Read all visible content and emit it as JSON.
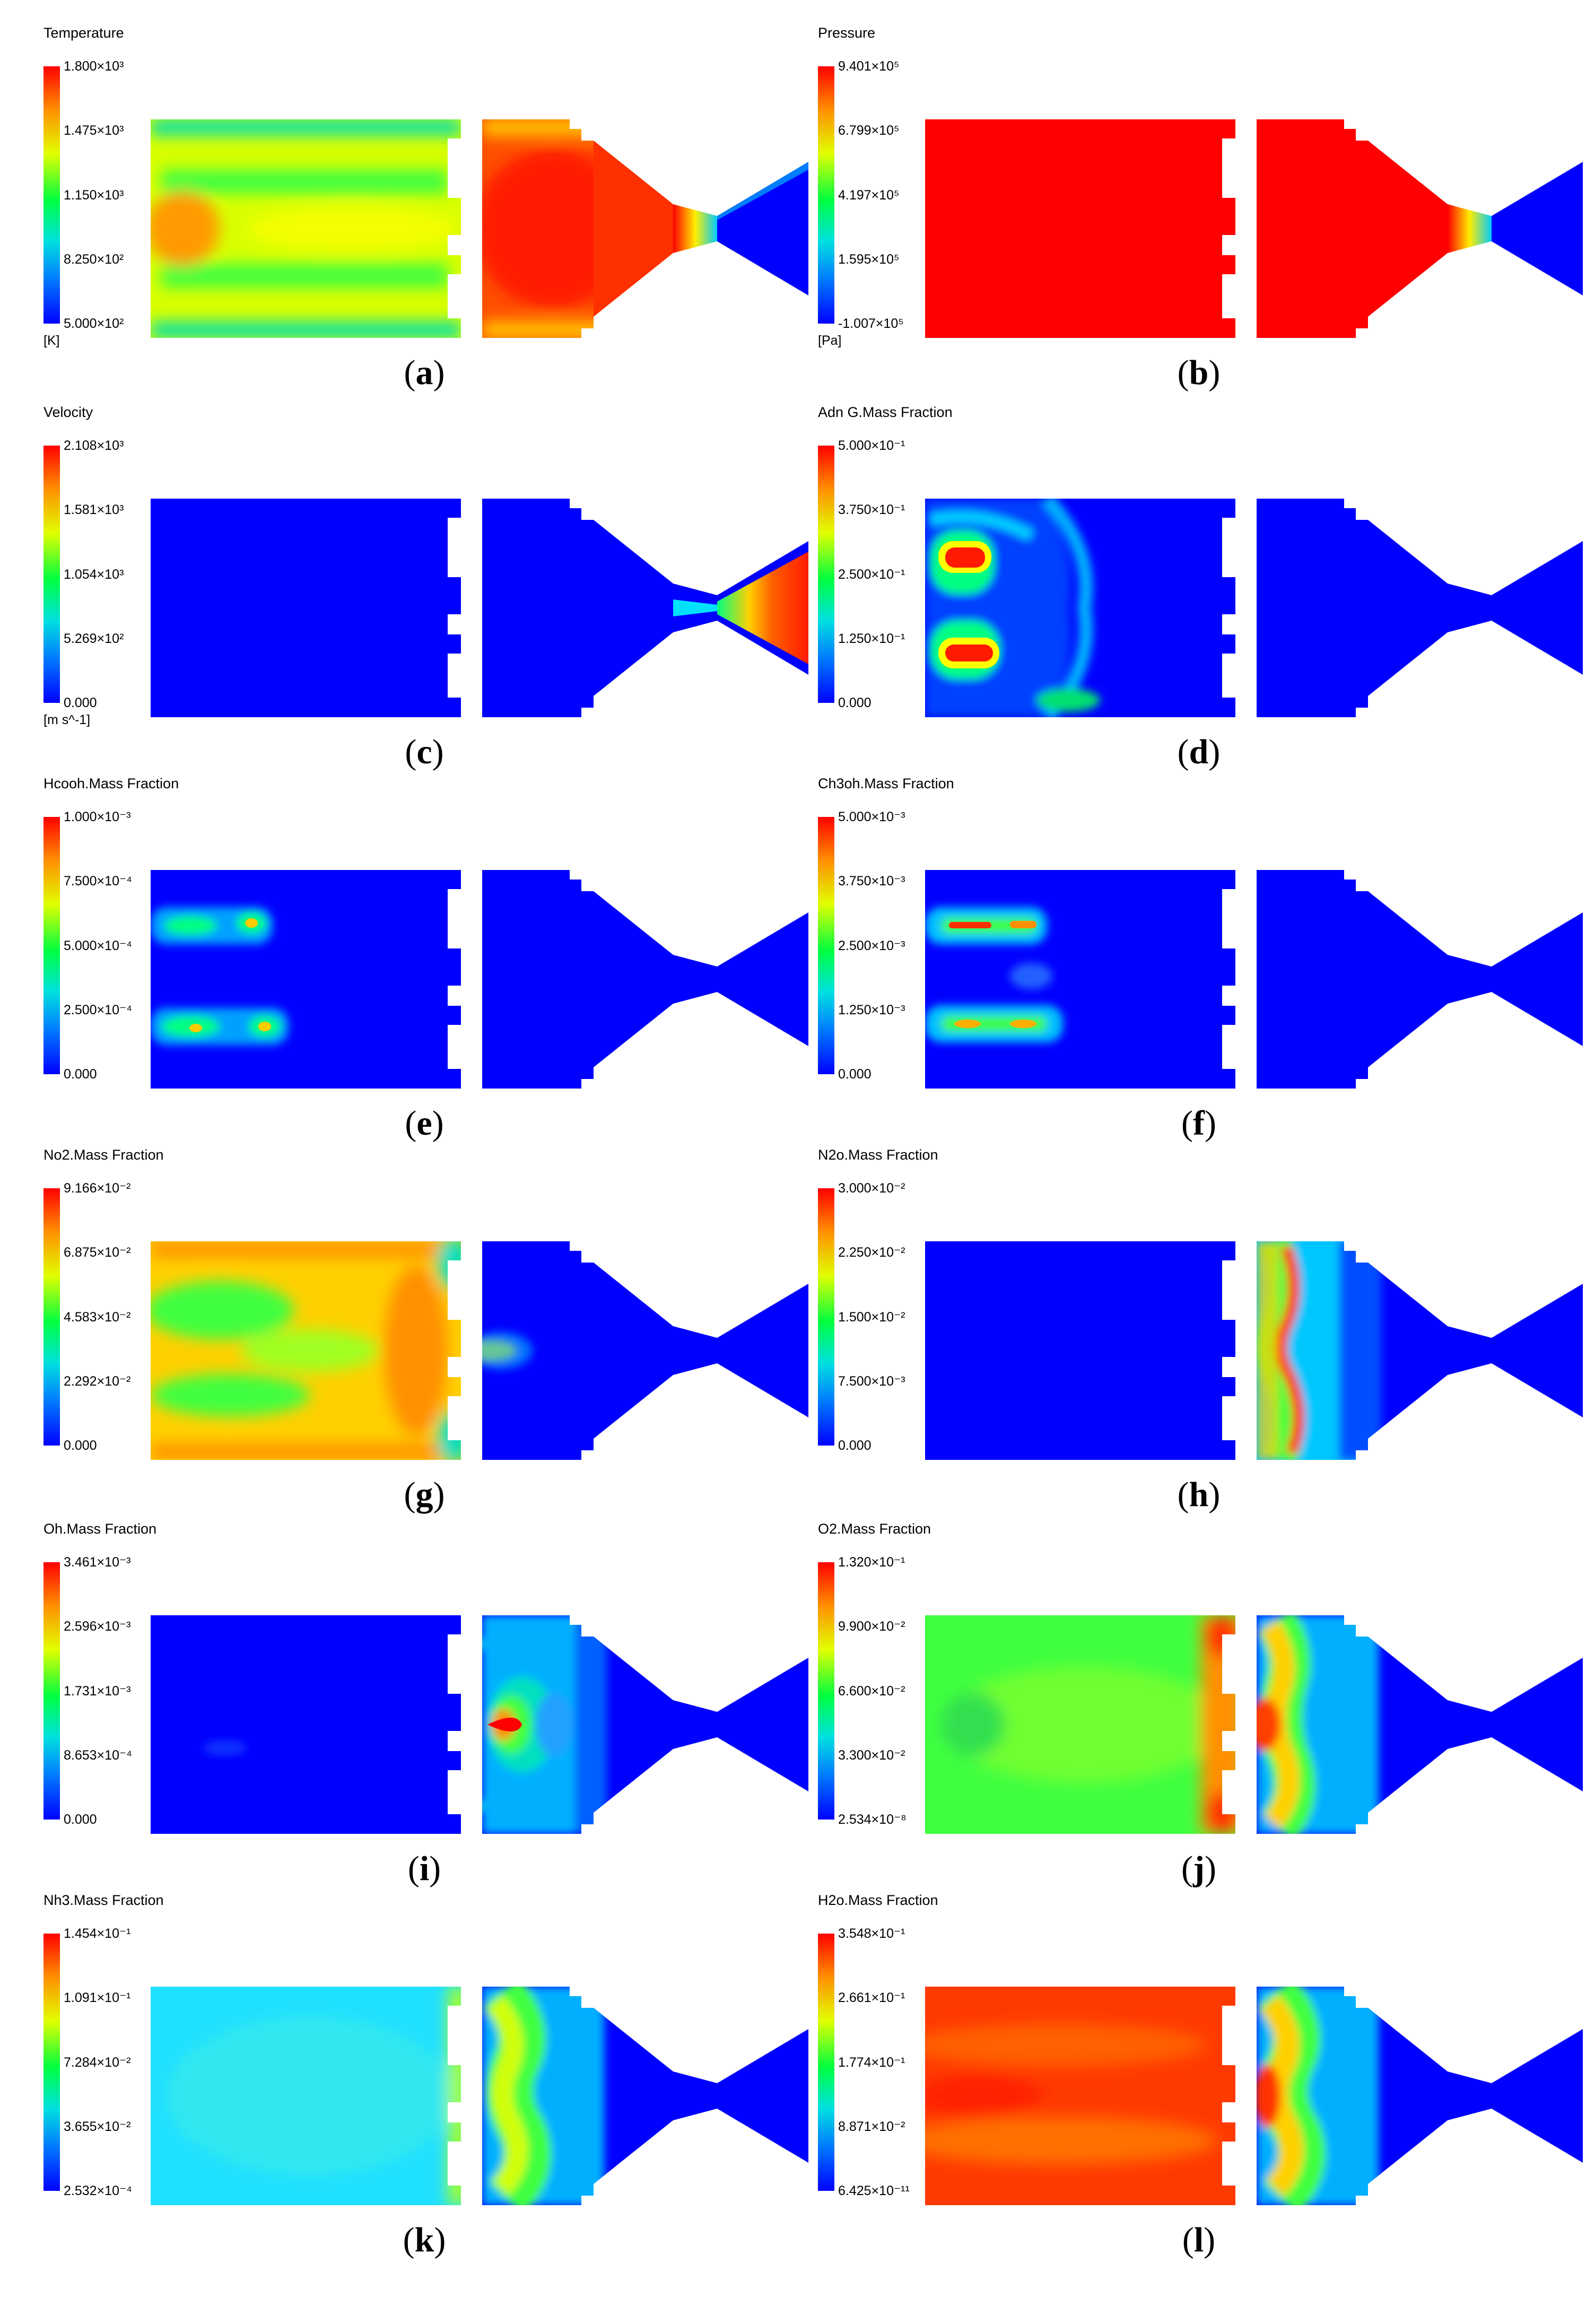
{
  "panels": [
    {
      "id": "a",
      "title": "Temperature",
      "unit": "[K]",
      "ticks": [
        "1.800×10³",
        "1.475×10³",
        "1.150×10³",
        "8.250×10²",
        "5.000×10²"
      ],
      "caption": "a"
    },
    {
      "id": "b",
      "title": "Pressure",
      "unit": "[Pa]",
      "ticks": [
        "9.401×10⁵",
        "6.799×10⁵",
        "4.197×10⁵",
        "1.595×10⁵",
        "-1.007×10⁵"
      ],
      "caption": "b"
    },
    {
      "id": "c",
      "title": "Velocity",
      "unit": "[m s^-1]",
      "ticks": [
        "2.108×10³",
        "1.581×10³",
        "1.054×10³",
        "5.269×10²",
        "0.000"
      ],
      "caption": "c"
    },
    {
      "id": "d",
      "title": "Adn G.Mass Fraction",
      "unit": "",
      "ticks": [
        "5.000×10⁻¹",
        "3.750×10⁻¹",
        "2.500×10⁻¹",
        "1.250×10⁻¹",
        "0.000"
      ],
      "caption": "d"
    },
    {
      "id": "e",
      "title": "Hcooh.Mass Fraction",
      "unit": "",
      "ticks": [
        "1.000×10⁻³",
        "7.500×10⁻⁴",
        "5.000×10⁻⁴",
        "2.500×10⁻⁴",
        "0.000"
      ],
      "caption": "e"
    },
    {
      "id": "f",
      "title": "Ch3oh.Mass Fraction",
      "unit": "",
      "ticks": [
        "5.000×10⁻³",
        "3.750×10⁻³",
        "2.500×10⁻³",
        "1.250×10⁻³",
        "0.000"
      ],
      "caption": "f"
    },
    {
      "id": "g",
      "title": "No2.Mass Fraction",
      "unit": "",
      "ticks": [
        "9.166×10⁻²",
        "6.875×10⁻²",
        "4.583×10⁻²",
        "2.292×10⁻²",
        "0.000"
      ],
      "caption": "g"
    },
    {
      "id": "h",
      "title": "N2o.Mass Fraction",
      "unit": "",
      "ticks": [
        "3.000×10⁻²",
        "2.250×10⁻²",
        "1.500×10⁻²",
        "7.500×10⁻³",
        "0.000"
      ],
      "caption": "h"
    },
    {
      "id": "i",
      "title": "Oh.Mass Fraction",
      "unit": "",
      "ticks": [
        "3.461×10⁻³",
        "2.596×10⁻³",
        "1.731×10⁻³",
        "8.653×10⁻⁴",
        "0.000"
      ],
      "caption": "i"
    },
    {
      "id": "j",
      "title": "O2.Mass Fraction",
      "unit": "",
      "ticks": [
        "1.320×10⁻¹",
        "9.900×10⁻²",
        "6.600×10⁻²",
        "3.300×10⁻²",
        "2.534×10⁻⁸"
      ],
      "caption": "j"
    },
    {
      "id": "k",
      "title": "Nh3.Mass Fraction",
      "unit": "",
      "ticks": [
        "1.454×10⁻¹",
        "1.091×10⁻¹",
        "7.284×10⁻²",
        "3.655×10⁻²",
        "2.532×10⁻⁴"
      ],
      "caption": "k"
    },
    {
      "id": "l",
      "title": "H2o.Mass Fraction",
      "unit": "",
      "ticks": [
        "3.548×10⁻¹",
        "2.661×10⁻¹",
        "1.774×10⁻¹",
        "8.871×10⁻²",
        "6.425×10⁻¹¹"
      ],
      "caption": "l"
    }
  ]
}
